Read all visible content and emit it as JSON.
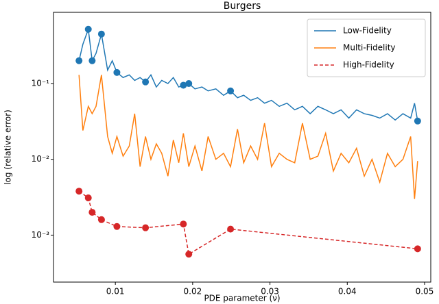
{
  "chart_data": {
    "type": "line",
    "title": "Burgers",
    "xlabel": "PDE parameter (ν)",
    "ylabel": "log (relative error)",
    "xlim": [
      0.002,
      0.0508
    ],
    "xticks": [
      0.01,
      0.02,
      0.03,
      0.04,
      0.05
    ],
    "ylim": [
      0.00024,
      0.87
    ],
    "yscale": "log",
    "yticks": [
      {
        "value": 0.1,
        "label": "10⁻¹"
      },
      {
        "value": 0.01,
        "label": "10⁻²"
      },
      {
        "value": 0.001,
        "label": "10⁻³"
      }
    ],
    "legend": "upper right",
    "series": [
      {
        "name": "Low-Fidelity",
        "color": "#1f77b4",
        "linestyle": "solid",
        "x": [
          0.0053,
          0.0058,
          0.0065,
          0.007,
          0.0075,
          0.0082,
          0.009,
          0.0096,
          0.0102,
          0.011,
          0.0118,
          0.0125,
          0.0132,
          0.0139,
          0.0146,
          0.0153,
          0.016,
          0.0168,
          0.0175,
          0.0182,
          0.0188,
          0.0195,
          0.0203,
          0.0212,
          0.022,
          0.023,
          0.024,
          0.0249,
          0.0258,
          0.0266,
          0.0275,
          0.0284,
          0.0293,
          0.0302,
          0.0312,
          0.0322,
          0.0332,
          0.0342,
          0.0352,
          0.0362,
          0.0372,
          0.0382,
          0.0392,
          0.0402,
          0.0412,
          0.0422,
          0.0432,
          0.0442,
          0.0452,
          0.0462,
          0.0472,
          0.0482,
          0.0487,
          0.0491
        ],
        "values": [
          0.2,
          0.33,
          0.52,
          0.2,
          0.25,
          0.45,
          0.15,
          0.2,
          0.14,
          0.12,
          0.13,
          0.11,
          0.12,
          0.105,
          0.13,
          0.09,
          0.11,
          0.1,
          0.12,
          0.09,
          0.095,
          0.1,
          0.085,
          0.09,
          0.08,
          0.085,
          0.07,
          0.08,
          0.065,
          0.07,
          0.06,
          0.065,
          0.055,
          0.06,
          0.05,
          0.055,
          0.045,
          0.05,
          0.04,
          0.05,
          0.045,
          0.04,
          0.045,
          0.035,
          0.045,
          0.04,
          0.038,
          0.035,
          0.04,
          0.033,
          0.04,
          0.035,
          0.055,
          0.032
        ],
        "marker_x": [
          0.0053,
          0.0065,
          0.007,
          0.0082,
          0.0102,
          0.0139,
          0.0188,
          0.0195,
          0.0249,
          0.0491
        ],
        "marker_values": [
          0.2,
          0.52,
          0.2,
          0.45,
          0.14,
          0.105,
          0.095,
          0.1,
          0.08,
          0.032
        ]
      },
      {
        "name": "Multi-Fidelity",
        "color": "#ff7f0e",
        "linestyle": "solid",
        "x": [
          0.0053,
          0.0058,
          0.0065,
          0.007,
          0.0075,
          0.0082,
          0.009,
          0.0096,
          0.0102,
          0.011,
          0.0118,
          0.0125,
          0.0132,
          0.0139,
          0.0146,
          0.0153,
          0.016,
          0.0168,
          0.0175,
          0.0182,
          0.0188,
          0.0195,
          0.0203,
          0.0212,
          0.022,
          0.023,
          0.024,
          0.0249,
          0.0258,
          0.0266,
          0.0275,
          0.0284,
          0.0293,
          0.0302,
          0.0312,
          0.0322,
          0.0332,
          0.0342,
          0.0352,
          0.0362,
          0.0372,
          0.0382,
          0.0392,
          0.0402,
          0.0412,
          0.0422,
          0.0432,
          0.0442,
          0.0452,
          0.0462,
          0.0472,
          0.0482,
          0.0487,
          0.0491
        ],
        "values": [
          0.13,
          0.024,
          0.05,
          0.04,
          0.05,
          0.13,
          0.02,
          0.012,
          0.02,
          0.011,
          0.015,
          0.04,
          0.008,
          0.02,
          0.01,
          0.016,
          0.012,
          0.006,
          0.018,
          0.009,
          0.022,
          0.008,
          0.015,
          0.007,
          0.02,
          0.01,
          0.012,
          0.008,
          0.025,
          0.009,
          0.015,
          0.01,
          0.03,
          0.008,
          0.012,
          0.01,
          0.009,
          0.03,
          0.01,
          0.011,
          0.022,
          0.007,
          0.012,
          0.009,
          0.014,
          0.006,
          0.01,
          0.005,
          0.012,
          0.008,
          0.01,
          0.02,
          0.003,
          0.0095
        ]
      },
      {
        "name": "High-Fidelity",
        "color": "#d62728",
        "linestyle": "dashed",
        "x": [
          0.0053,
          0.0065,
          0.007,
          0.0082,
          0.0102,
          0.0139,
          0.0188,
          0.0195,
          0.0249,
          0.0491
        ],
        "values": [
          0.0038,
          0.0031,
          0.002,
          0.0016,
          0.0013,
          0.00125,
          0.0014,
          0.00056,
          0.0012,
          0.00066
        ]
      }
    ]
  }
}
